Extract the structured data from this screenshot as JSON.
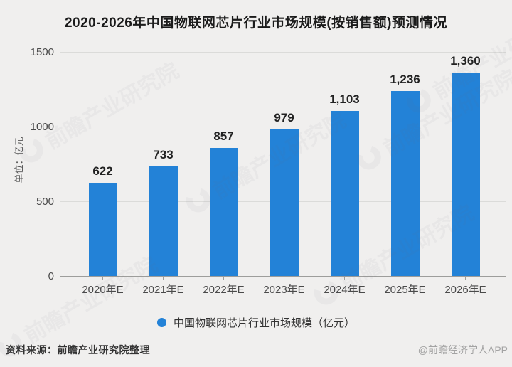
{
  "title": "2020-2026年中国物联网芯片行业市场规模(按销售额)预测情况",
  "chart_data": {
    "type": "bar",
    "categories": [
      "2020年E",
      "2021年E",
      "2022年E",
      "2023年E",
      "2024年E",
      "2025年E",
      "2026年E"
    ],
    "values": [
      622,
      733,
      857,
      979,
      1103,
      1236,
      1360
    ],
    "value_labels": [
      "622",
      "733",
      "857",
      "979",
      "1,103",
      "1,236",
      "1,360"
    ],
    "title": "2020-2026年中国物联网芯片行业市场规模(按销售额)预测情况",
    "xlabel": "",
    "ylabel": "单位：亿元",
    "ylim": [
      0,
      1500
    ],
    "yticks": [
      0,
      500,
      1000,
      1500
    ],
    "grid": true,
    "bar_color": "#2382d7",
    "legend": {
      "label": "中国物联网芯片行业市场规模（亿元）",
      "position": "bottom"
    }
  },
  "footer": {
    "source": "资料来源：前瞻产业研究院整理",
    "credit": "@前瞻经济学人APP"
  },
  "watermark": {
    "text": "前瞻产业研究院"
  }
}
